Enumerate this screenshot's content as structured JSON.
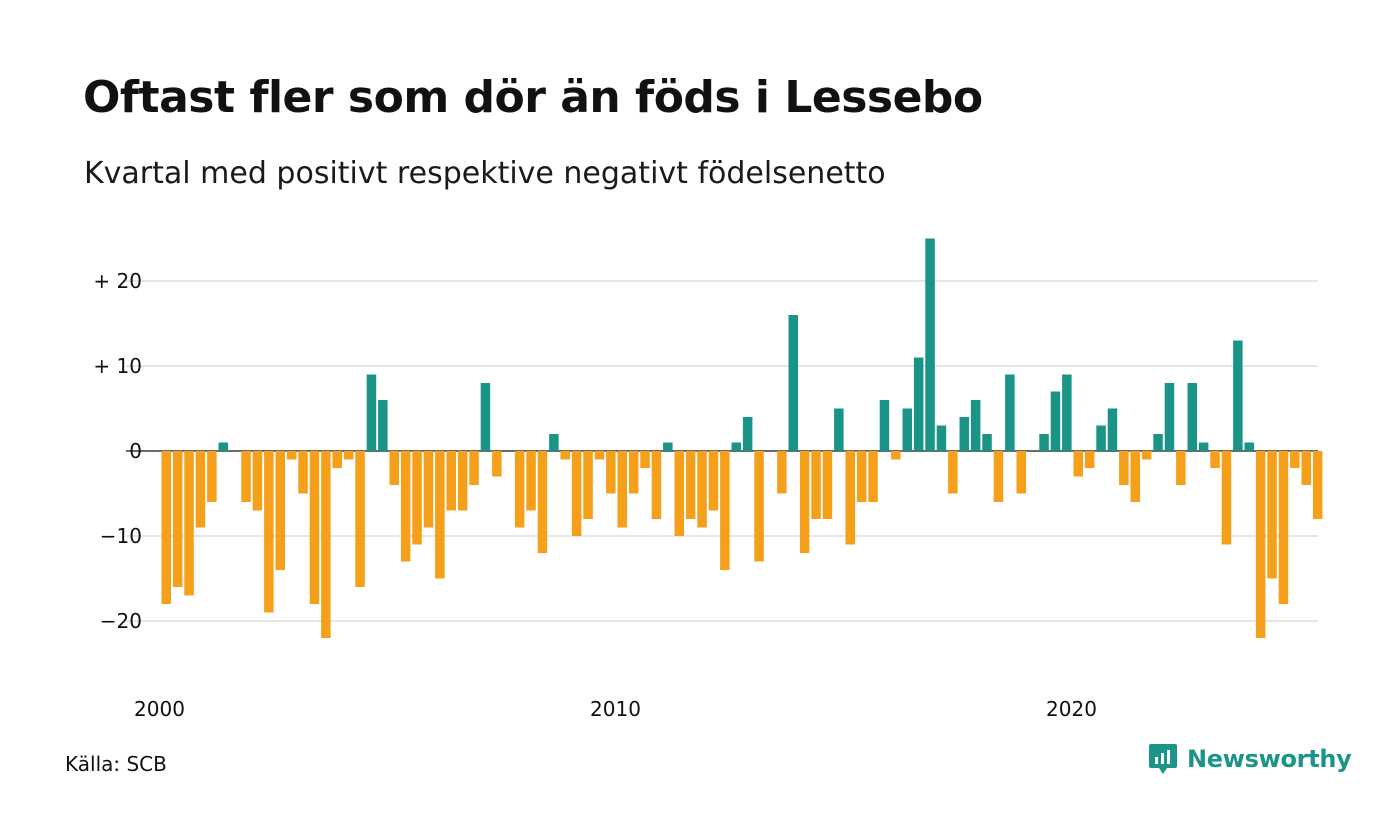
{
  "title": "Oftast fler som dör än föds i Lessebo",
  "subtitle": "Kvartal med positivt respektive negativt födelsenetto",
  "source": "Källa: SCB",
  "brand": "Newsworthy",
  "colors": {
    "positive": "#1a9486",
    "negative": "#f59f1a",
    "grid": "#dcdde3",
    "brand": "#1d9488"
  },
  "icons": {
    "brand_logo": "newsworthy-logo-icon"
  },
  "chart_data": {
    "type": "bar",
    "x_start": "2000 Q1",
    "x_ticks": [
      "2000",
      "2010",
      "2020"
    ],
    "y_ticks": [
      {
        "value": 20,
        "label": "+ 20"
      },
      {
        "value": 10,
        "label": "+ 10"
      },
      {
        "value": 0,
        "label": "0"
      },
      {
        "value": -10,
        "label": "−10"
      },
      {
        "value": -20,
        "label": "−20"
      }
    ],
    "ylim": [
      -25,
      25
    ],
    "values": [
      -18,
      -16,
      -17,
      -9,
      -6,
      1,
      0,
      -6,
      -7,
      -19,
      -14,
      -1,
      -5,
      -18,
      -22,
      -2,
      -1,
      -16,
      9,
      6,
      -4,
      -13,
      -11,
      -9,
      -15,
      -7,
      -7,
      -4,
      8,
      -3,
      0,
      -9,
      -7,
      -12,
      2,
      -1,
      -10,
      -8,
      -1,
      -5,
      -9,
      -5,
      -2,
      -8,
      1,
      -10,
      -8,
      -9,
      -7,
      -14,
      1,
      4,
      -13,
      0,
      -5,
      16,
      -12,
      -8,
      -8,
      5,
      -11,
      -6,
      -6,
      6,
      -1,
      5,
      11,
      25,
      3,
      -5,
      4,
      6,
      2,
      -6,
      9,
      -5,
      0,
      2,
      7,
      9,
      -3,
      -2,
      3,
      5,
      -4,
      -6,
      -1,
      2,
      8,
      -4,
      8,
      1,
      -2,
      -11,
      13,
      1,
      -22,
      -15,
      -18,
      -2,
      -4,
      -8
    ]
  }
}
